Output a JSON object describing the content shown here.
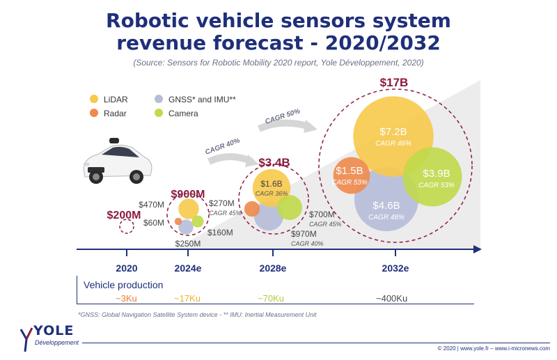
{
  "title_line1": "Robotic vehicle sensors system",
  "title_line2": "revenue forecast - 2020/2032",
  "source": "(Source: Sensors for Robotic Mobility 2020 report, Yole Développement, 2020)",
  "colors": {
    "title": "#1f2f7a",
    "total": "#8b1a3e",
    "lidar": "#f7c94b",
    "radar": "#ef8a4c",
    "gnss_imu": "#b7bcd9",
    "camera": "#c1d94a",
    "axis": "#1f2f7a"
  },
  "chart_data": {
    "type": "bubble",
    "legend": [
      "LiDAR",
      "Radar",
      "GNSS* and IMU**",
      "Camera"
    ],
    "years": [
      "2020",
      "2024e",
      "2028e",
      "2032e"
    ],
    "totals": [
      "$200M",
      "$900M",
      "$3.4B",
      "$17B"
    ],
    "total_values_musd": [
      200,
      900,
      3400,
      17000
    ],
    "cagr_arrows": [
      "CAGR 40%",
      "CAGR 50%"
    ],
    "series_2024": {
      "lidar": {
        "label": "$470M",
        "value_musd": 470
      },
      "radar": {
        "label": "$60M",
        "value_musd": 60
      },
      "gnss_imu": {
        "label": "$250M",
        "value_musd": 250
      },
      "camera": {
        "label": "$160M",
        "value_musd": 160
      }
    },
    "series_2028": {
      "lidar": {
        "label": "$1.6B",
        "cagr": "CAGR 36%",
        "value_musd": 1600
      },
      "radar": {
        "label": "$270M",
        "cagr": "CAGR 45%",
        "value_musd": 270
      },
      "gnss_imu": {
        "label": "$970M",
        "cagr": "CAGR 40%",
        "value_musd": 970
      },
      "camera": {
        "label": "$700M",
        "cagr": "CAGR 45%",
        "value_musd": 700
      }
    },
    "series_2032": {
      "lidar": {
        "label": "$7.2B",
        "cagr": "CAGR 46%",
        "value_musd": 7200
      },
      "radar": {
        "label": "$1.5B",
        "cagr": "CAGR 53%",
        "value_musd": 1500
      },
      "gnss_imu": {
        "label": "$4.6B",
        "cagr": "CAGR 48%",
        "value_musd": 4600
      },
      "camera": {
        "label": "$3.9B",
        "cagr": "CAGR 53%",
        "value_musd": 3900
      }
    }
  },
  "vehicle_production": {
    "label": "Vehicle production",
    "values": [
      "~3Ku",
      "~17Ku",
      "~70Ku",
      "~400Ku"
    ],
    "colors": [
      "#ef7d2c",
      "#f0b323",
      "#b7c934",
      "#4a4a4a"
    ]
  },
  "footnote": "*GNSS: Global Navigation Satellite System  device - ** IMU: Inertial Measurement Unit",
  "copyright": "© 2020 | www.yole.fr – www.i-micronews.com",
  "logo": {
    "name": "YOLE",
    "sub": "Développement"
  }
}
